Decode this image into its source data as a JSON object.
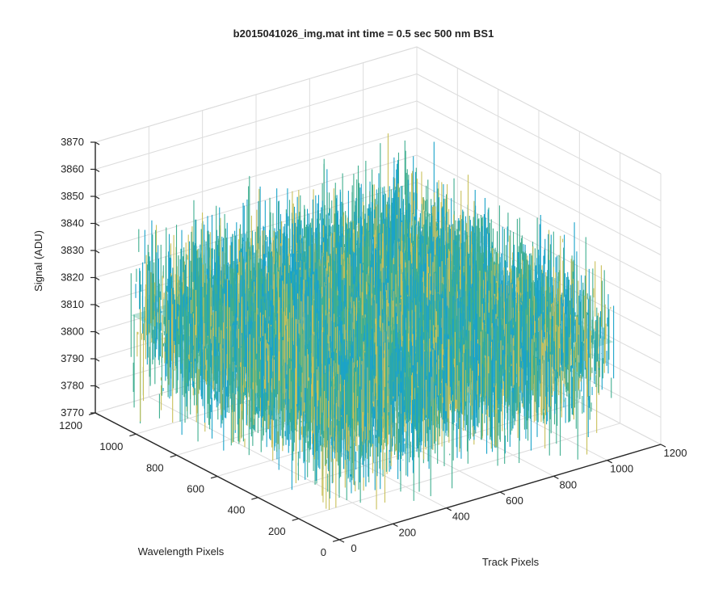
{
  "chart_data": {
    "type": "surface3d",
    "title": "b2015041026_img.mat int time = 0.5 sec  500 nm BS1",
    "xlabel": "Track Pixels",
    "ylabel": "Wavelength Pixels",
    "zlabel": "Signal (ADU)",
    "xlim": [
      0,
      1200
    ],
    "ylim": [
      0,
      1200
    ],
    "zlim": [
      3770,
      3870
    ],
    "x_ticks": [
      0,
      200,
      400,
      600,
      800,
      1000,
      1200
    ],
    "y_ticks": [
      0,
      200,
      400,
      600,
      800,
      1000,
      1200
    ],
    "z_ticks": [
      3770,
      3780,
      3790,
      3800,
      3810,
      3820,
      3830,
      3840,
      3850,
      3860,
      3870
    ],
    "x_tick_labels": [
      "0",
      "200",
      "400",
      "600",
      "800",
      "1000",
      "1200"
    ],
    "y_tick_labels": [
      "0",
      "200",
      "400",
      "600",
      "800",
      "1000",
      "1200"
    ],
    "z_tick_labels": [
      "3770",
      "3780",
      "3790",
      "3800",
      "3810",
      "3820",
      "3830",
      "3840",
      "3850",
      "3860",
      "3870"
    ],
    "surface": {
      "x_range": [
        0,
        1024
      ],
      "y_range": [
        0,
        1024
      ],
      "mean_signal": 3813,
      "noise_spread": 15
    },
    "colors": {
      "low": "#1aa3c9",
      "mid": "#3fae8f",
      "high": "#c9c05a"
    },
    "grid": true
  }
}
